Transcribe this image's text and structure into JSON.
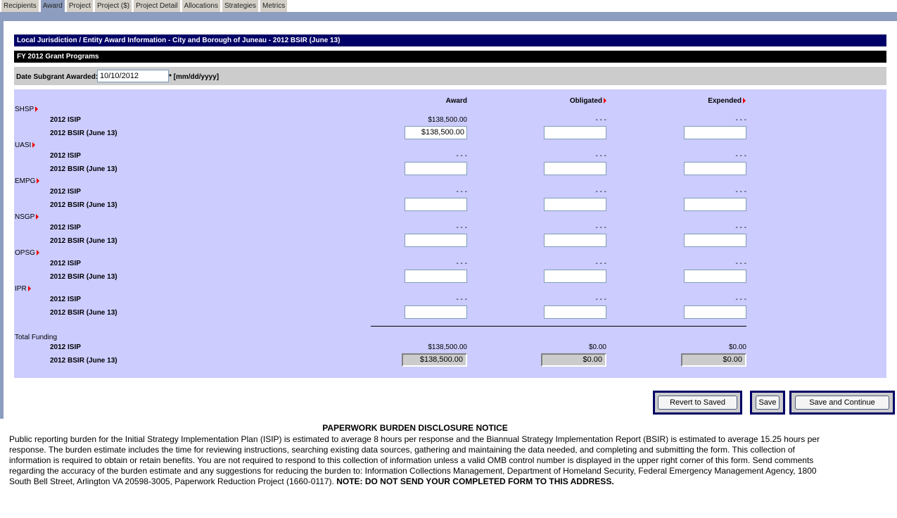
{
  "tabs": [
    {
      "label": "Recipients",
      "active": false
    },
    {
      "label": "Award",
      "active": true
    },
    {
      "label": "Project",
      "active": false
    },
    {
      "label": "Project ($)",
      "active": false
    },
    {
      "label": "Project Detail",
      "active": false
    },
    {
      "label": "Allocations",
      "active": false
    },
    {
      "label": "Strategies",
      "active": false
    },
    {
      "label": "Metrics",
      "active": false
    }
  ],
  "header": {
    "title": "Local Jurisdiction / Entity Award Information - City and Borough of Juneau - 2012 BSIR (June 13)",
    "section": "FY 2012 Grant Programs"
  },
  "date": {
    "label": "Date Subgrant Awarded:",
    "value": "10/10/2012",
    "format": "* [mm/dd/yyyy]"
  },
  "columns": {
    "award": "Award",
    "obligated": "Obligated",
    "expended": "Expended"
  },
  "programs": [
    {
      "name": "SHSP",
      "isip_label": "2012 ISIP",
      "bsir_label": "2012 BSIR (June 13)",
      "isip": [
        "$138,500.00",
        "- - -",
        "- - -"
      ],
      "bsir": [
        "$138,500.00",
        "",
        ""
      ]
    },
    {
      "name": "UASI",
      "isip_label": "2012 ISIP",
      "bsir_label": "2012 BSIR (June 13)",
      "isip": [
        "- - -",
        "- - -",
        "- - -"
      ],
      "bsir": [
        "",
        "",
        ""
      ]
    },
    {
      "name": "EMPG",
      "isip_label": "2012 ISIP",
      "bsir_label": "2012 BSIR (June 13)",
      "isip": [
        "- - -",
        "- - -",
        "- - -"
      ],
      "bsir": [
        "",
        "",
        ""
      ]
    },
    {
      "name": "NSGP",
      "isip_label": "2012 ISIP",
      "bsir_label": "2012 BSIR (June 13)",
      "isip": [
        "- - -",
        "- - -",
        "- - -"
      ],
      "bsir": [
        "",
        "",
        ""
      ]
    },
    {
      "name": "OPSG",
      "isip_label": "2012 ISIP",
      "bsir_label": "2012 BSIR (June 13)",
      "isip": [
        "- - -",
        "- - -",
        "- - -"
      ],
      "bsir": [
        "",
        "",
        ""
      ]
    },
    {
      "name": "IPR",
      "isip_label": "2012 ISIP",
      "bsir_label": "2012 BSIR (June 13)",
      "isip": [
        "- - -",
        "- - -",
        "- - -"
      ],
      "bsir": [
        "",
        "",
        ""
      ]
    }
  ],
  "totals": {
    "label": "Total Funding",
    "isip_label": "2012 ISIP",
    "bsir_label": "2012 BSIR (June 13)",
    "isip": [
      "$138,500.00",
      "$0.00",
      "$0.00"
    ],
    "bsir": [
      "$138,500.00",
      "$0.00",
      "$0.00"
    ]
  },
  "buttons": {
    "revert": "Revert to Saved",
    "save": "Save",
    "save_continue": "Save and Continue"
  },
  "notice": {
    "title": "PAPERWORK BURDEN DISCLOSURE NOTICE",
    "body": "Public reporting burden for the Initial Strategy Implementation Plan (ISIP) is estimated to average 8 hours per response and the Biannual Strategy Implementation Report (BSIR) is estimated to average 15.25 hours per response. The burden estimate includes the time for reviewing instructions, searching existing data sources, gathering and maintaining the data needed, and completing and submitting the form. This collection of information is required to obtain or retain benefits. You are not required to respond to this collection of information unless a valid OMB control number is displayed in the upper right corner of this form. Send comments regarding the accuracy of the burden estimate and any suggestions for reducing the burden to: Information Collections Management, Department of Homeland Security, Federal Emergency Management Agency, 1800 South Bell Street, Arlington VA 20598-3005, Paperwork Reduction Project (1660-0117).",
    "bold": "NOTE: DO NOT SEND YOUR COMPLETED FORM TO THIS ADDRESS."
  },
  "colors": {
    "navy": "#000066",
    "panel": "#ccccff",
    "accent_arrow": "#ee0000"
  }
}
